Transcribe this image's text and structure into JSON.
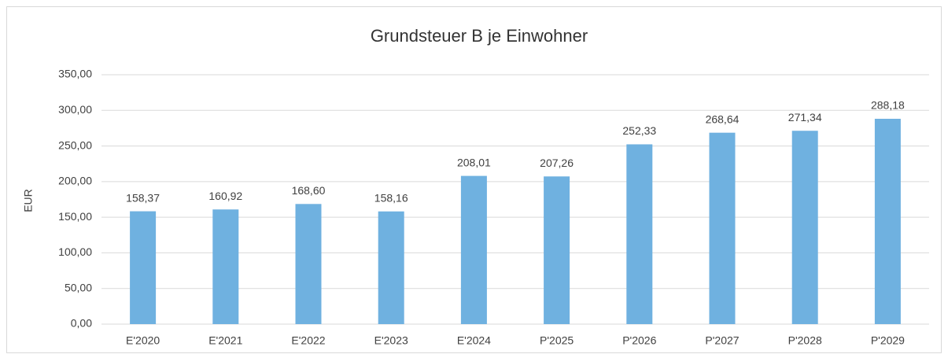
{
  "chart_data": {
    "type": "bar",
    "title": "Grundsteuer B je Einwohner",
    "y_label": "EUR",
    "categories": [
      "E'2020",
      "E'2021",
      "E'2022",
      "E'2023",
      "E'2024",
      "P'2025",
      "P'2026",
      "P'2027",
      "P'2028",
      "P'2029"
    ],
    "values": [
      158.37,
      160.92,
      168.6,
      158.16,
      208.01,
      207.26,
      252.33,
      268.64,
      271.34,
      288.18
    ],
    "value_labels": [
      "158,37",
      "160,92",
      "168,60",
      "158,16",
      "208,01",
      "207,26",
      "252,33",
      "268,64",
      "271,34",
      "288,18"
    ],
    "color": "#6fb1e0",
    "ylim": [
      0,
      350
    ],
    "yticks": [
      {
        "value": 0,
        "label": "0,00"
      },
      {
        "value": 50,
        "label": "50,00"
      },
      {
        "value": 100,
        "label": "100,00"
      },
      {
        "value": 150,
        "label": "150,00"
      },
      {
        "value": 200,
        "label": "200,00"
      },
      {
        "value": 250,
        "label": "250,00"
      },
      {
        "value": 300,
        "label": "300,00"
      },
      {
        "value": 350,
        "label": "350,00"
      }
    ],
    "grid": true
  }
}
